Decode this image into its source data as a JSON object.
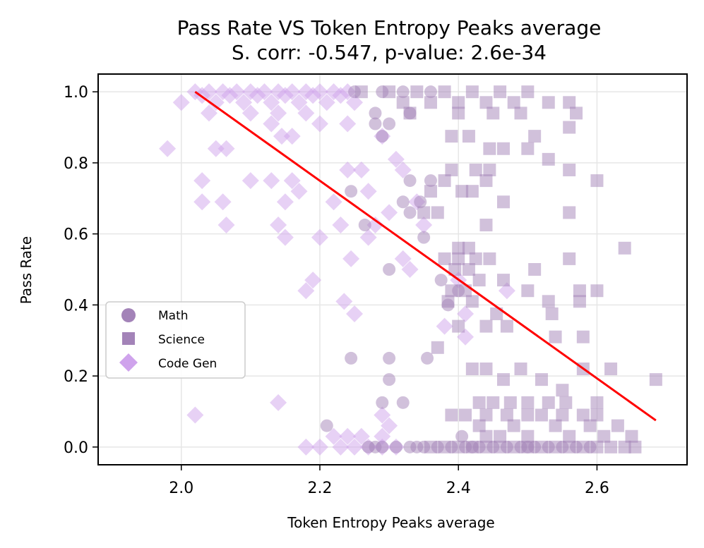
{
  "chart_data": {
    "type": "scatter",
    "title": "Pass Rate VS Token Entropy Peaks average",
    "subtitle": "S. corr: -0.547, p-value: 2.6e-34",
    "xlabel": "Token Entropy Peaks average",
    "ylabel": "Pass Rate",
    "xlim": [
      1.88,
      2.73
    ],
    "ylim": [
      -0.05,
      1.05
    ],
    "xticks": [
      2.0,
      2.2,
      2.4,
      2.6
    ],
    "xtick_labels": [
      "2.0",
      "2.2",
      "2.4",
      "2.6"
    ],
    "yticks": [
      0.0,
      0.2,
      0.4,
      0.6,
      0.8,
      1.0
    ],
    "ytick_labels": [
      "0.0",
      "0.2",
      "0.4",
      "0.6",
      "0.8",
      "1.0"
    ],
    "grid": true,
    "legend_position": "center-left",
    "trend_line": {
      "x": [
        2.02,
        2.685
      ],
      "y": [
        1.0,
        0.075
      ],
      "color": "#ff0000"
    },
    "series": [
      {
        "name": "Math",
        "marker": "circle",
        "color": "#a383b8",
        "points": [
          [
            2.25,
            1.0
          ],
          [
            2.29,
            1.0
          ],
          [
            2.32,
            1.0
          ],
          [
            2.36,
            1.0
          ],
          [
            2.28,
            0.94
          ],
          [
            2.33,
            0.94
          ],
          [
            2.28,
            0.91
          ],
          [
            2.3,
            0.91
          ],
          [
            2.29,
            0.875
          ],
          [
            2.245,
            0.72
          ],
          [
            2.33,
            0.75
          ],
          [
            2.36,
            0.75
          ],
          [
            2.32,
            0.69
          ],
          [
            2.345,
            0.69
          ],
          [
            2.33,
            0.66
          ],
          [
            2.265,
            0.625
          ],
          [
            2.35,
            0.59
          ],
          [
            2.3,
            0.5
          ],
          [
            2.375,
            0.47
          ],
          [
            2.4,
            0.44
          ],
          [
            2.385,
            0.4
          ],
          [
            2.245,
            0.25
          ],
          [
            2.3,
            0.25
          ],
          [
            2.355,
            0.25
          ],
          [
            2.3,
            0.19
          ],
          [
            2.29,
            0.125
          ],
          [
            2.32,
            0.125
          ],
          [
            2.405,
            0.03
          ],
          [
            2.21,
            0.06
          ],
          [
            2.27,
            0.0
          ],
          [
            2.29,
            0.0
          ],
          [
            2.31,
            0.0
          ],
          [
            2.33,
            0.0
          ],
          [
            2.35,
            0.0
          ],
          [
            2.37,
            0.0
          ],
          [
            2.39,
            0.0
          ],
          [
            2.41,
            0.0
          ],
          [
            2.43,
            0.0
          ],
          [
            2.45,
            0.0
          ],
          [
            2.47,
            0.0
          ],
          [
            2.49,
            0.0
          ],
          [
            2.51,
            0.0
          ],
          [
            2.53,
            0.0
          ],
          [
            2.55,
            0.0
          ],
          [
            2.57,
            0.0
          ],
          [
            2.59,
            0.0
          ],
          [
            2.28,
            0.0
          ],
          [
            2.34,
            0.0
          ],
          [
            2.42,
            0.0
          ],
          [
            2.5,
            0.0
          ]
        ]
      },
      {
        "name": "Science",
        "marker": "square",
        "color": "#a383b8",
        "points": [
          [
            2.26,
            1.0
          ],
          [
            2.3,
            1.0
          ],
          [
            2.34,
            1.0
          ],
          [
            2.38,
            1.0
          ],
          [
            2.42,
            1.0
          ],
          [
            2.46,
            1.0
          ],
          [
            2.5,
            1.0
          ],
          [
            2.32,
            0.97
          ],
          [
            2.36,
            0.97
          ],
          [
            2.4,
            0.97
          ],
          [
            2.44,
            0.97
          ],
          [
            2.48,
            0.97
          ],
          [
            2.53,
            0.97
          ],
          [
            2.56,
            0.97
          ],
          [
            2.33,
            0.94
          ],
          [
            2.4,
            0.94
          ],
          [
            2.57,
            0.94
          ],
          [
            2.49,
            0.94
          ],
          [
            2.45,
            0.94
          ],
          [
            2.56,
            0.9
          ],
          [
            2.39,
            0.875
          ],
          [
            2.415,
            0.875
          ],
          [
            2.51,
            0.875
          ],
          [
            2.445,
            0.84
          ],
          [
            2.465,
            0.84
          ],
          [
            2.5,
            0.84
          ],
          [
            2.53,
            0.81
          ],
          [
            2.39,
            0.78
          ],
          [
            2.425,
            0.78
          ],
          [
            2.445,
            0.78
          ],
          [
            2.56,
            0.78
          ],
          [
            2.6,
            0.75
          ],
          [
            2.38,
            0.75
          ],
          [
            2.44,
            0.75
          ],
          [
            2.36,
            0.72
          ],
          [
            2.405,
            0.72
          ],
          [
            2.42,
            0.72
          ],
          [
            2.35,
            0.66
          ],
          [
            2.37,
            0.66
          ],
          [
            2.56,
            0.66
          ],
          [
            2.465,
            0.69
          ],
          [
            2.44,
            0.625
          ],
          [
            2.4,
            0.56
          ],
          [
            2.415,
            0.56
          ],
          [
            2.64,
            0.56
          ],
          [
            2.38,
            0.53
          ],
          [
            2.4,
            0.53
          ],
          [
            2.425,
            0.53
          ],
          [
            2.445,
            0.53
          ],
          [
            2.56,
            0.53
          ],
          [
            2.395,
            0.5
          ],
          [
            2.415,
            0.5
          ],
          [
            2.51,
            0.5
          ],
          [
            2.43,
            0.47
          ],
          [
            2.465,
            0.47
          ],
          [
            2.39,
            0.44
          ],
          [
            2.41,
            0.44
          ],
          [
            2.5,
            0.44
          ],
          [
            2.575,
            0.44
          ],
          [
            2.6,
            0.44
          ],
          [
            2.385,
            0.41
          ],
          [
            2.42,
            0.41
          ],
          [
            2.53,
            0.41
          ],
          [
            2.575,
            0.41
          ],
          [
            2.455,
            0.375
          ],
          [
            2.535,
            0.375
          ],
          [
            2.4,
            0.34
          ],
          [
            2.44,
            0.34
          ],
          [
            2.47,
            0.34
          ],
          [
            2.54,
            0.31
          ],
          [
            2.58,
            0.31
          ],
          [
            2.37,
            0.28
          ],
          [
            2.62,
            0.22
          ],
          [
            2.685,
            0.19
          ],
          [
            2.42,
            0.22
          ],
          [
            2.44,
            0.22
          ],
          [
            2.465,
            0.19
          ],
          [
            2.49,
            0.22
          ],
          [
            2.52,
            0.19
          ],
          [
            2.55,
            0.16
          ],
          [
            2.58,
            0.22
          ],
          [
            2.43,
            0.125
          ],
          [
            2.45,
            0.125
          ],
          [
            2.475,
            0.125
          ],
          [
            2.5,
            0.125
          ],
          [
            2.53,
            0.125
          ],
          [
            2.555,
            0.125
          ],
          [
            2.6,
            0.125
          ],
          [
            2.39,
            0.09
          ],
          [
            2.41,
            0.09
          ],
          [
            2.44,
            0.09
          ],
          [
            2.47,
            0.09
          ],
          [
            2.5,
            0.09
          ],
          [
            2.52,
            0.09
          ],
          [
            2.55,
            0.09
          ],
          [
            2.58,
            0.09
          ],
          [
            2.6,
            0.09
          ],
          [
            2.43,
            0.06
          ],
          [
            2.48,
            0.06
          ],
          [
            2.54,
            0.06
          ],
          [
            2.59,
            0.06
          ],
          [
            2.63,
            0.06
          ],
          [
            2.44,
            0.03
          ],
          [
            2.46,
            0.03
          ],
          [
            2.5,
            0.03
          ],
          [
            2.56,
            0.03
          ],
          [
            2.61,
            0.03
          ],
          [
            2.65,
            0.03
          ],
          [
            2.36,
            0.0
          ],
          [
            2.38,
            0.0
          ],
          [
            2.4,
            0.0
          ],
          [
            2.42,
            0.0
          ],
          [
            2.44,
            0.0
          ],
          [
            2.46,
            0.0
          ],
          [
            2.48,
            0.0
          ],
          [
            2.5,
            0.0
          ],
          [
            2.52,
            0.0
          ],
          [
            2.54,
            0.0
          ],
          [
            2.56,
            0.0
          ],
          [
            2.58,
            0.0
          ],
          [
            2.6,
            0.0
          ],
          [
            2.62,
            0.0
          ],
          [
            2.64,
            0.0
          ],
          [
            2.655,
            0.0
          ]
        ]
      },
      {
        "name": "Code Gen",
        "marker": "diamond",
        "color": "#cfa3ec",
        "points": [
          [
            2.02,
            1.0
          ],
          [
            2.04,
            1.0
          ],
          [
            2.06,
            1.0
          ],
          [
            2.08,
            1.0
          ],
          [
            2.1,
            1.0
          ],
          [
            2.12,
            1.0
          ],
          [
            2.14,
            1.0
          ],
          [
            2.16,
            1.0
          ],
          [
            2.18,
            1.0
          ],
          [
            2.2,
            1.0
          ],
          [
            2.22,
            1.0
          ],
          [
            2.24,
            1.0
          ],
          [
            2.03,
            0.99
          ],
          [
            2.07,
            0.99
          ],
          [
            2.11,
            0.99
          ],
          [
            2.15,
            0.99
          ],
          [
            2.19,
            0.99
          ],
          [
            2.23,
            0.99
          ],
          [
            2.05,
            0.97
          ],
          [
            2.09,
            0.97
          ],
          [
            2.13,
            0.97
          ],
          [
            2.17,
            0.97
          ],
          [
            2.21,
            0.97
          ],
          [
            2.25,
            0.97
          ],
          [
            2.0,
            0.97
          ],
          [
            2.1,
            0.94
          ],
          [
            2.14,
            0.94
          ],
          [
            2.18,
            0.94
          ],
          [
            2.04,
            0.94
          ],
          [
            2.13,
            0.91
          ],
          [
            2.2,
            0.91
          ],
          [
            2.24,
            0.91
          ],
          [
            2.29,
            0.875
          ],
          [
            2.145,
            0.875
          ],
          [
            2.16,
            0.875
          ],
          [
            2.05,
            0.84
          ],
          [
            2.065,
            0.84
          ],
          [
            1.98,
            0.84
          ],
          [
            2.31,
            0.81
          ],
          [
            2.32,
            0.78
          ],
          [
            2.24,
            0.78
          ],
          [
            2.26,
            0.78
          ],
          [
            2.1,
            0.75
          ],
          [
            2.13,
            0.75
          ],
          [
            2.16,
            0.75
          ],
          [
            2.03,
            0.75
          ],
          [
            2.17,
            0.72
          ],
          [
            2.27,
            0.72
          ],
          [
            2.03,
            0.69
          ],
          [
            2.06,
            0.69
          ],
          [
            2.15,
            0.69
          ],
          [
            2.22,
            0.69
          ],
          [
            2.34,
            0.69
          ],
          [
            2.3,
            0.66
          ],
          [
            2.065,
            0.625
          ],
          [
            2.14,
            0.625
          ],
          [
            2.23,
            0.625
          ],
          [
            2.28,
            0.625
          ],
          [
            2.15,
            0.59
          ],
          [
            2.2,
            0.59
          ],
          [
            2.27,
            0.59
          ],
          [
            2.35,
            0.625
          ],
          [
            2.32,
            0.53
          ],
          [
            2.245,
            0.53
          ],
          [
            2.33,
            0.5
          ],
          [
            2.19,
            0.47
          ],
          [
            2.4,
            0.47
          ],
          [
            2.18,
            0.44
          ],
          [
            2.47,
            0.44
          ],
          [
            2.235,
            0.41
          ],
          [
            2.41,
            0.375
          ],
          [
            2.25,
            0.375
          ],
          [
            2.38,
            0.34
          ],
          [
            2.41,
            0.31
          ],
          [
            2.02,
            0.09
          ],
          [
            2.14,
            0.125
          ],
          [
            2.29,
            0.09
          ],
          [
            2.3,
            0.06
          ],
          [
            2.22,
            0.03
          ],
          [
            2.24,
            0.03
          ],
          [
            2.26,
            0.03
          ],
          [
            2.29,
            0.03
          ],
          [
            2.18,
            0.0
          ],
          [
            2.2,
            0.0
          ],
          [
            2.23,
            0.0
          ],
          [
            2.25,
            0.0
          ],
          [
            2.27,
            0.0
          ],
          [
            2.29,
            0.0
          ],
          [
            2.31,
            0.0
          ]
        ]
      }
    ]
  }
}
